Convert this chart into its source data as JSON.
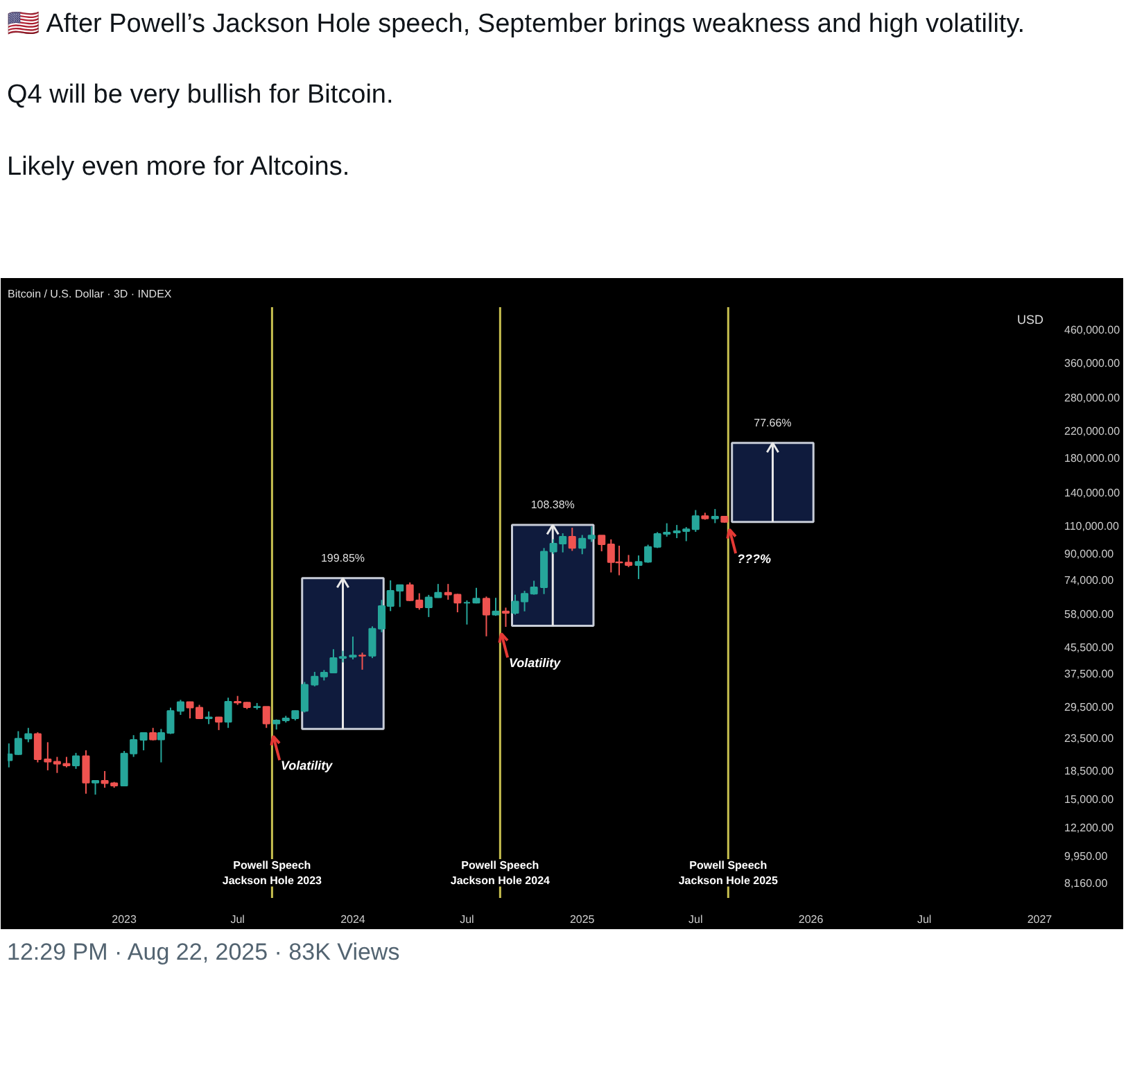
{
  "chart_data": {
    "type": "candlestick",
    "title": "Bitcoin / U.S. Dollar · 3D · INDEX",
    "subtitle": "🇺🇸 After Powell’s Jackson Hole speech, September brings weakness and high volatility.\n\nQ4 will be very bullish for Bitcoin.\n\nLikely even more for Altcoins.",
    "ylabel": "USD",
    "x": [
      "2022-07-01",
      "2022-07-16",
      "2022-08-01",
      "2022-08-16",
      "2022-09-01",
      "2022-09-16",
      "2022-10-01",
      "2022-10-16",
      "2022-11-01",
      "2022-11-16",
      "2022-12-01",
      "2022-12-16",
      "2023-01-01",
      "2023-01-16",
      "2023-02-01",
      "2023-02-16",
      "2023-03-01",
      "2023-03-16",
      "2023-04-01",
      "2023-04-16",
      "2023-05-01",
      "2023-05-16",
      "2023-06-01",
      "2023-06-16",
      "2023-07-01",
      "2023-07-16",
      "2023-08-01",
      "2023-08-16",
      "2023-09-01",
      "2023-09-16",
      "2023-10-01",
      "2023-10-16",
      "2023-11-01",
      "2023-11-16",
      "2023-12-01",
      "2023-12-16",
      "2024-01-01",
      "2024-01-16",
      "2024-02-01",
      "2024-02-16",
      "2024-03-01",
      "2024-03-16",
      "2024-04-01",
      "2024-04-16",
      "2024-05-01",
      "2024-05-16",
      "2024-06-01",
      "2024-06-16",
      "2024-07-01",
      "2024-07-16",
      "2024-08-01",
      "2024-08-16",
      "2024-09-01",
      "2024-09-16",
      "2024-10-01",
      "2024-10-16",
      "2024-11-01",
      "2024-11-16",
      "2024-12-01",
      "2024-12-16",
      "2025-01-01",
      "2025-01-16",
      "2025-02-01",
      "2025-02-16",
      "2025-03-01",
      "2025-03-16",
      "2025-04-01",
      "2025-04-16",
      "2025-05-01",
      "2025-05-16",
      "2025-06-01",
      "2025-06-16",
      "2025-07-01",
      "2025-07-16",
      "2025-08-01",
      "2025-08-16"
    ],
    "ohlc": [
      [
        19900,
        22500,
        18900,
        20800
      ],
      [
        20800,
        24600,
        20700,
        23300
      ],
      [
        23300,
        25200,
        22700,
        24100
      ],
      [
        24100,
        24400,
        19600,
        20050
      ],
      [
        20050,
        22700,
        18500,
        19700
      ],
      [
        19700,
        20400,
        18150,
        19400
      ],
      [
        19400,
        20400,
        18900,
        19150
      ],
      [
        19150,
        21000,
        18700,
        20500
      ],
      [
        20500,
        21400,
        15600,
        16900
      ],
      [
        16900,
        17200,
        15500,
        17150
      ],
      [
        17150,
        18400,
        16300,
        16850
      ],
      [
        16850,
        17000,
        16300,
        16550
      ],
      [
        16550,
        21300,
        16500,
        20900
      ],
      [
        20900,
        23900,
        20400,
        23100
      ],
      [
        23100,
        24300,
        21400,
        24300
      ],
      [
        24300,
        25200,
        23000,
        23150
      ],
      [
        23150,
        25000,
        19600,
        24300
      ],
      [
        24300,
        29200,
        24100,
        28500
      ],
      [
        28500,
        30900,
        27700,
        30400
      ],
      [
        30400,
        30500,
        27000,
        29200
      ],
      [
        29200,
        29800,
        26900,
        27000
      ],
      [
        27000,
        28400,
        25900,
        27200
      ],
      [
        27200,
        27300,
        24800,
        26350
      ],
      [
        26350,
        31400,
        25200,
        30500
      ],
      [
        30500,
        31800,
        29800,
        30300
      ],
      [
        30300,
        30450,
        28900,
        29300
      ],
      [
        29300,
        30200,
        28800,
        29400
      ],
      [
        29400,
        29400,
        25200,
        26000
      ],
      [
        26000,
        26800,
        24900,
        26600
      ],
      [
        26600,
        27500,
        26200,
        27000
      ],
      [
        27000,
        28600,
        26600,
        28500
      ],
      [
        28500,
        35200,
        28200,
        34500
      ],
      [
        34500,
        37900,
        34100,
        36600
      ],
      [
        36600,
        38400,
        35600,
        37700
      ],
      [
        37700,
        44700,
        37600,
        41900
      ],
      [
        41900,
        44200,
        40600,
        42300
      ],
      [
        42300,
        49000,
        41500,
        42700
      ],
      [
        42700,
        43600,
        38500,
        42600
      ],
      [
        42600,
        52800,
        41900,
        51900
      ],
      [
        51900,
        64000,
        50600,
        61200
      ],
      [
        61200,
        73800,
        59000,
        68400
      ],
      [
        68400,
        71500,
        60800,
        71300
      ],
      [
        71300,
        72700,
        63500,
        63800
      ],
      [
        63800,
        67200,
        59600,
        60600
      ],
      [
        60600,
        66400,
        56500,
        65200
      ],
      [
        65200,
        71900,
        65000,
        67500
      ],
      [
        67500,
        71900,
        64100,
        66500
      ],
      [
        66500,
        66900,
        58500,
        62700
      ],
      [
        62700,
        63800,
        53500,
        62700
      ],
      [
        62700,
        69900,
        62400,
        64600
      ],
      [
        64600,
        65600,
        49100,
        57500
      ],
      [
        57500,
        65000,
        57000,
        58900
      ],
      [
        58900,
        60500,
        52600,
        58200
      ],
      [
        58200,
        66500,
        57500,
        63300
      ],
      [
        63300,
        68400,
        58900,
        67000
      ],
      [
        67000,
        73600,
        66500,
        70200
      ],
      [
        70200,
        93400,
        66800,
        91000
      ],
      [
        91000,
        99600,
        89400,
        96400
      ],
      [
        96400,
        104000,
        90500,
        101500
      ],
      [
        101500,
        108300,
        91500,
        93400
      ],
      [
        93400,
        102700,
        89300,
        100000
      ],
      [
        100000,
        109300,
        97700,
        102400
      ],
      [
        102400,
        102500,
        91200,
        96000
      ],
      [
        96000,
        99500,
        78200,
        84300
      ],
      [
        84300,
        95000,
        76600,
        84000
      ],
      [
        84000,
        88800,
        81300,
        82500
      ],
      [
        82500,
        88500,
        74500,
        84500
      ],
      [
        84500,
        95700,
        83900,
        94200
      ],
      [
        94200,
        104900,
        93400,
        103500
      ],
      [
        103500,
        111900,
        101500,
        104600
      ],
      [
        104600,
        110500,
        100400,
        105600
      ],
      [
        105600,
        108800,
        98200,
        107100
      ],
      [
        107100,
        123200,
        105100,
        117900
      ],
      [
        117900,
        120800,
        114800,
        115800
      ],
      [
        115800,
        124100,
        112000,
        117400
      ],
      [
        117400,
        117900,
        112300,
        113000
      ]
    ],
    "series": [
      {
        "type": "bar",
        "name": "199.85%",
        "color": "#0f1b3d",
        "x": [
          "2023-12-16"
        ],
        "values": [
          50000
        ],
        "base": [
          25000
        ]
      },
      {
        "type": "bar",
        "name": "108.38%",
        "color": "#0f1b3d",
        "x": [
          "2024-11-15"
        ],
        "values": [
          57500
        ],
        "base": [
          53000
        ]
      },
      {
        "type": "bar",
        "name": "77.66%",
        "color": "#0f1b3d",
        "x": [
          "2025-11-01"
        ],
        "values": [
          87800
        ],
        "base": [
          113000
        ]
      }
    ],
    "annotations": [
      "Volatility",
      "Volatility",
      "???%",
      "12:29 PM · Aug 22, 2025 · 83K Views"
    ],
    "ref_lines": [
      {
        "axis": "x",
        "value": "2023-08-25",
        "label": "Powell Speech\nJackson Hole 2023",
        "color": "#c8c050"
      },
      {
        "axis": "x",
        "value": "2024-08-23",
        "label": "Powell Speech\nJackson Hole 2024",
        "color": "#c8c050"
      },
      {
        "axis": "x",
        "value": "2025-08-22",
        "label": "Powell Speech\nJackson Hole 2025",
        "color": "#c8c050"
      }
    ],
    "log": true,
    "xlim": [
      "2022-06-29",
      "2027-01-16"
    ],
    "xticks": [
      {
        "value": "2023-01-01",
        "label": "2023"
      },
      {
        "value": "2023-07-01",
        "label": "Jul"
      },
      {
        "value": "2024-01-01",
        "label": "2024"
      },
      {
        "value": "2024-07-01",
        "label": "Jul"
      },
      {
        "value": "2025-01-01",
        "label": "2025"
      },
      {
        "value": "2025-07-01",
        "label": "Jul"
      },
      {
        "value": "2026-01-01",
        "label": "2026"
      },
      {
        "value": "2026-07-01",
        "label": "Jul"
      },
      {
        "value": "2027-01-01",
        "label": "2027"
      }
    ],
    "ylim": [
      7300,
      540000
    ],
    "yticks": [
      {
        "value": 8160,
        "label": "8,160.00"
      },
      {
        "value": 9950,
        "label": "9,950.00"
      },
      {
        "value": 12200,
        "label": "12,200.00"
      },
      {
        "value": 15000,
        "label": "15,000.00"
      },
      {
        "value": 18500,
        "label": "18,500.00"
      },
      {
        "value": 23500,
        "label": "23,500.00"
      },
      {
        "value": 29500,
        "label": "29,500.00"
      },
      {
        "value": 37500,
        "label": "37,500.00"
      },
      {
        "value": 45500,
        "label": "45,500.00"
      },
      {
        "value": 58000,
        "label": "58,000.00"
      },
      {
        "value": 74000,
        "label": "74,000.00"
      },
      {
        "value": 90000,
        "label": "90,000.00"
      },
      {
        "value": 110000,
        "label": "110,000.00"
      },
      {
        "value": 140000,
        "label": "140,000.00"
      },
      {
        "value": 180000,
        "label": "180,000.00"
      },
      {
        "value": 220000,
        "label": "220,000.00"
      },
      {
        "value": 280000,
        "label": "280,000.00"
      },
      {
        "value": 360000,
        "label": "360,000.00"
      },
      {
        "value": 460000,
        "label": "460,000.00"
      }
    ],
    "grid": false
  }
}
